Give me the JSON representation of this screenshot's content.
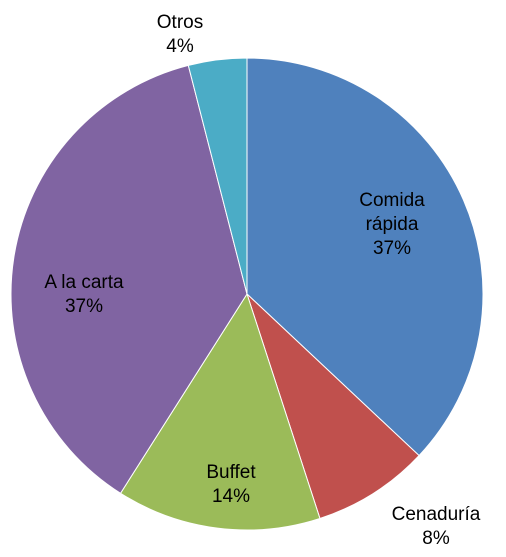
{
  "chart_data": {
    "type": "pie",
    "categories": [
      "Comida rápida",
      "Cenaduría",
      "Buffet",
      "A la carta",
      "Otros"
    ],
    "values": [
      37,
      8,
      14,
      37,
      4
    ],
    "value_labels": [
      "37%",
      "8%",
      "14%",
      "37%",
      "4%"
    ],
    "colors": [
      "#4f81bd",
      "#c0504d",
      "#9bbb59",
      "#8064a2",
      "#4bacc6"
    ]
  }
}
